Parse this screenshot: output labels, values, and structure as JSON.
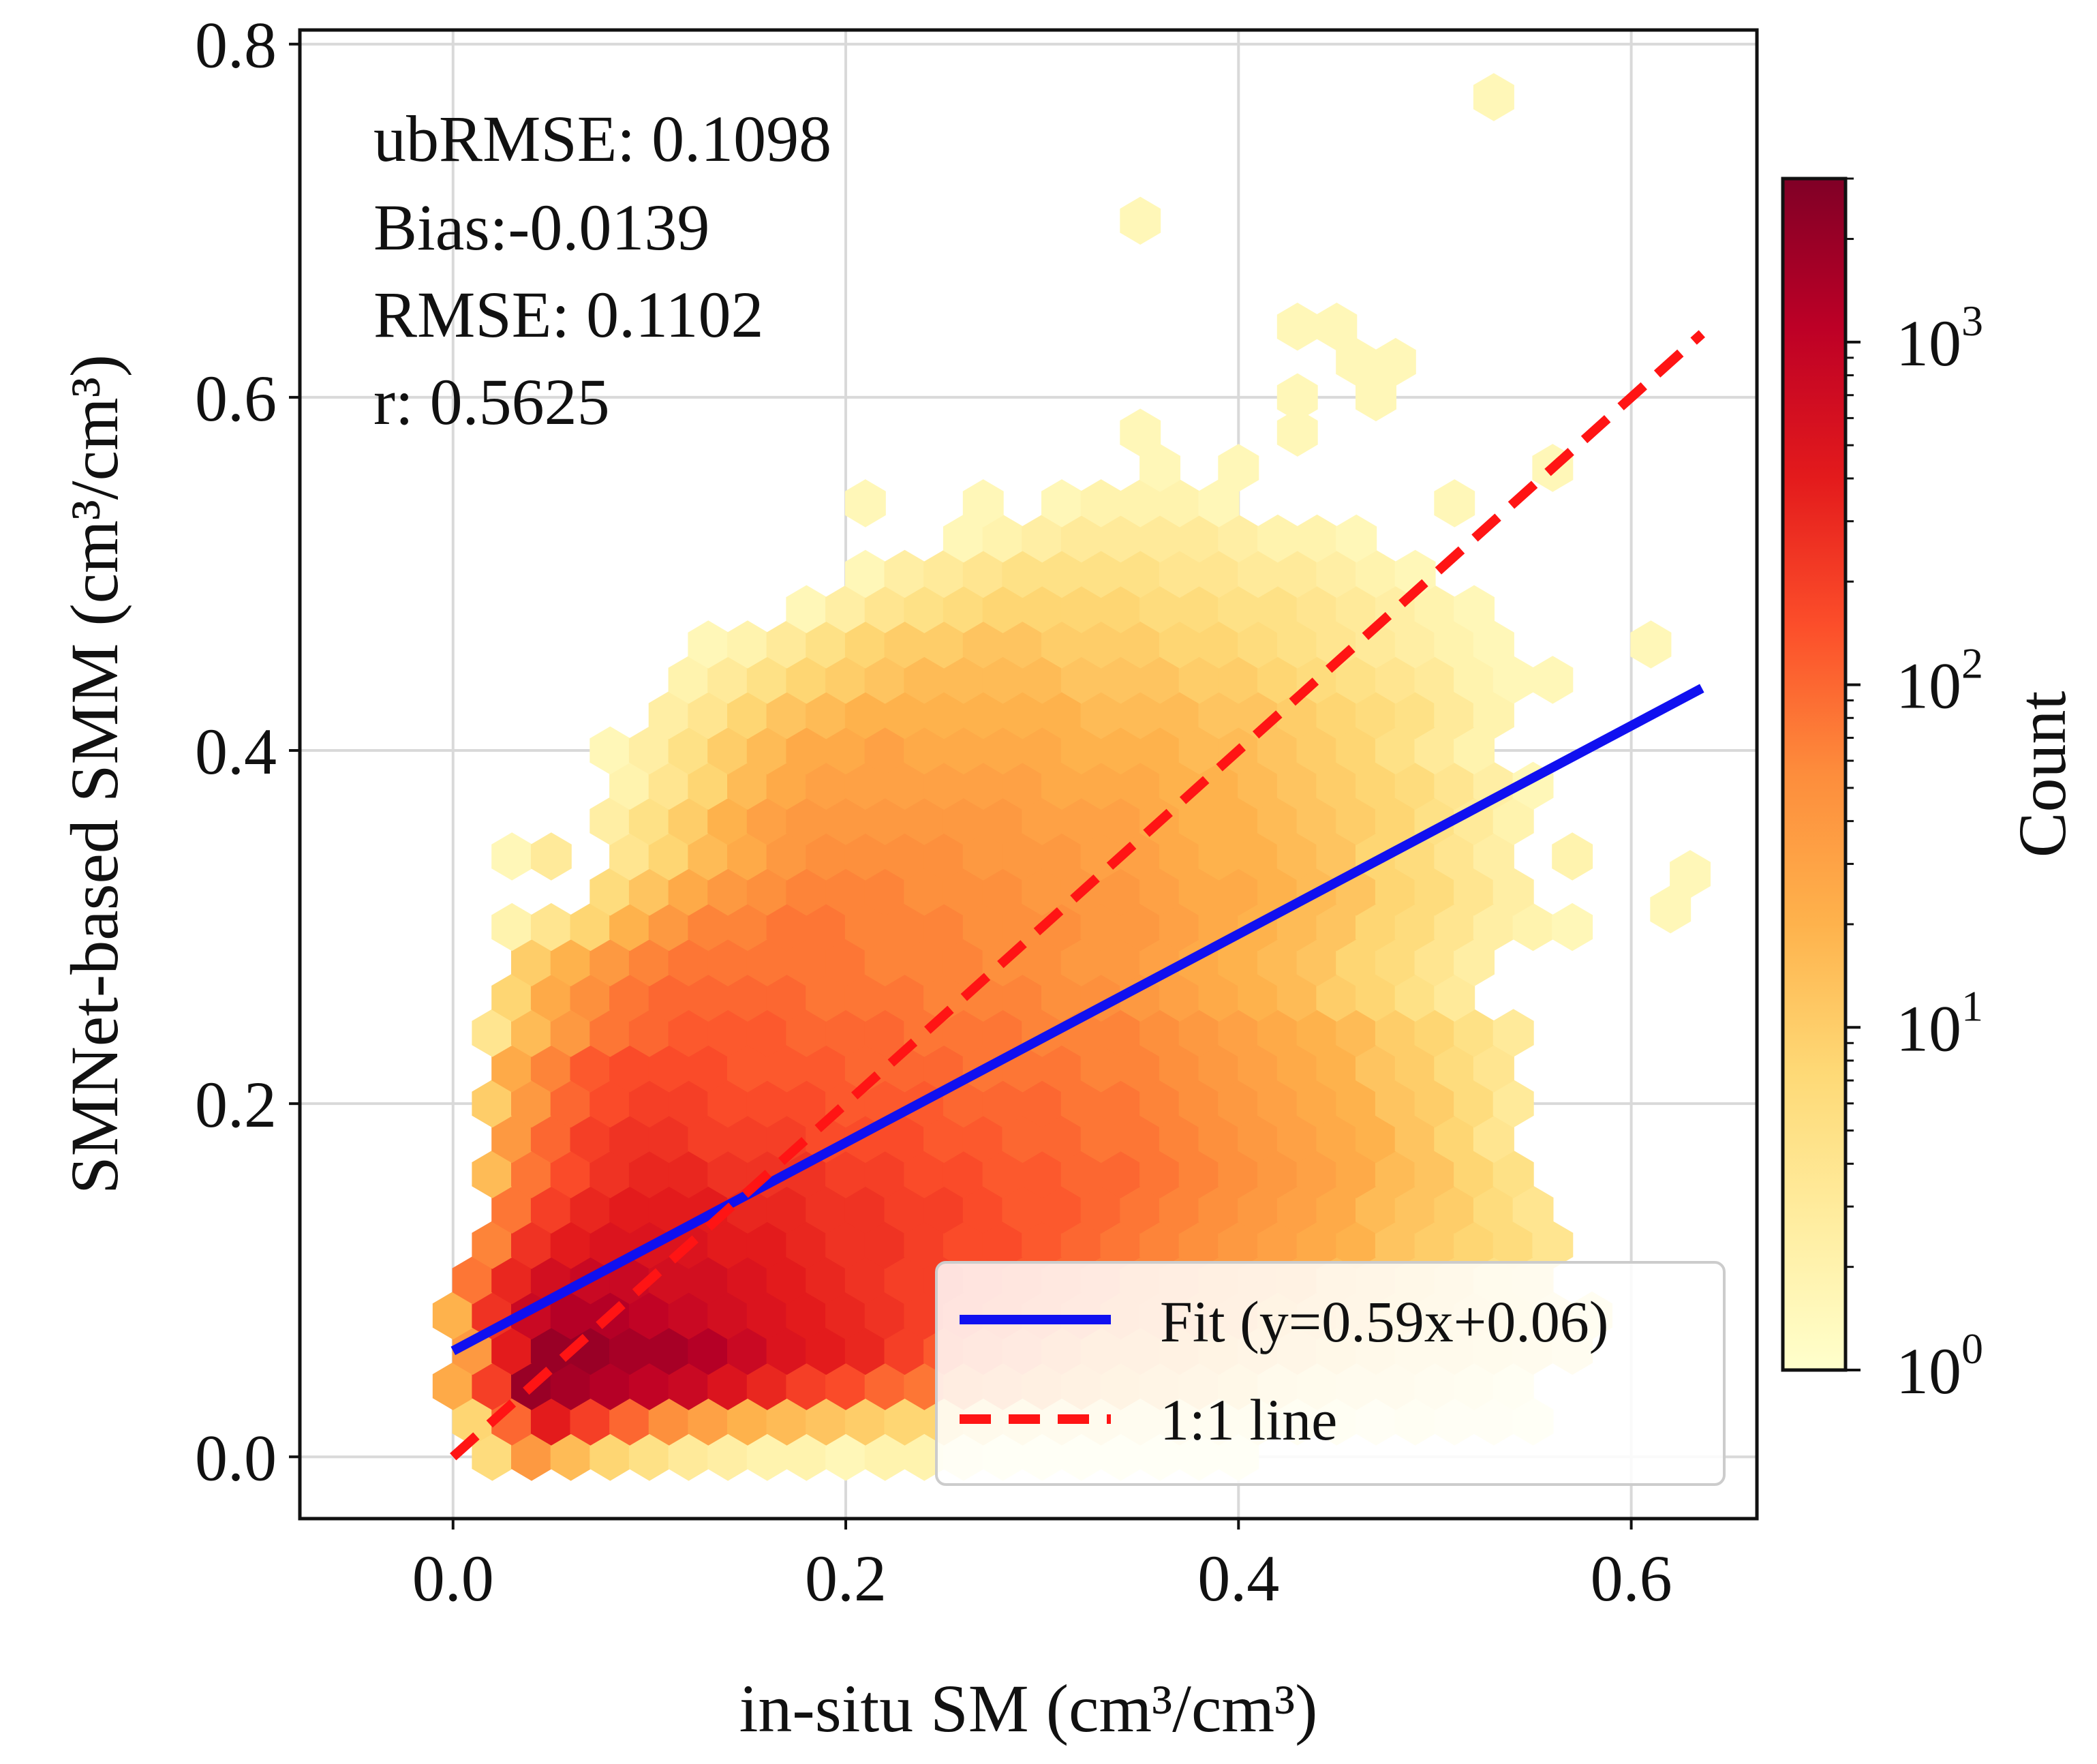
{
  "chart_data": {
    "type": "hexbin",
    "xlabel": "in-situ SM (cm³/cm³)",
    "ylabel": "SMNet-based SMM (cm³/cm³)",
    "xlim": [
      -0.078,
      0.664
    ],
    "ylim": [
      -0.035,
      0.808
    ],
    "x_ticks": [
      0.0,
      0.2,
      0.4,
      0.6
    ],
    "x_tick_labels": [
      "0.0",
      "0.2",
      "0.4",
      "0.6"
    ],
    "y_ticks": [
      0.0,
      0.2,
      0.4,
      0.6,
      0.8
    ],
    "y_tick_labels": [
      "0.0",
      "0.2",
      "0.4",
      "0.6",
      "0.8"
    ],
    "grid": true,
    "stats": [
      "ubRMSE: 0.1098",
      "Bias:-0.0139",
      "RMSE: 0.1102",
      "r: 0.5625"
    ],
    "fit": {
      "slope": 0.59,
      "intercept": 0.06,
      "x_range": [
        0.0,
        0.636
      ],
      "color": "#1010f0"
    },
    "one_to_one": {
      "x_range": [
        0.0,
        0.636
      ],
      "color": "#ff1414"
    },
    "legend": {
      "position": "lower-right",
      "entries": [
        {
          "label": "Fit (y=0.59x+0.06)",
          "style": "solid",
          "color": "#1010f0"
        },
        {
          "label": "1:1 line",
          "style": "dashed",
          "color": "#ff1414"
        }
      ]
    },
    "colorbar": {
      "label": "Count",
      "scale": "log",
      "range": [
        1,
        3000
      ],
      "tick_values": [
        1,
        10,
        100,
        1000
      ],
      "tick_labels": [
        {
          "base": "10",
          "exp": "0"
        },
        {
          "base": "10",
          "exp": "1"
        },
        {
          "base": "10",
          "exp": "2"
        },
        {
          "base": "10",
          "exp": "3"
        }
      ],
      "colormap": "YlOrRd",
      "stops": [
        "#ffffcc",
        "#ffeda0",
        "#fed976",
        "#feb24c",
        "#fd8d3c",
        "#fc4e2a",
        "#e31a1c",
        "#bd0026",
        "#800026"
      ]
    },
    "hexbin": {
      "x_step": 0.02,
      "y_step": 0.04,
      "note": "Approximate log10(count) per hexagon; each row: x-offset (0 = centers at 0.00,0.02,... ; 1 = centers at 0.01,0.03,...), first x center, log10 counts left to right",
      "rows": [
        {
          "y": 0.0,
          "offset": 0,
          "x0": 0.02,
          "v": [
            0.8,
            1.6,
            1.2,
            0.9,
            0.7,
            0.5,
            0.4,
            0.3,
            0.3,
            0.2,
            0.3,
            0.3,
            0.2,
            0.1,
            0.1,
            0.1,
            0.1,
            0.1,
            0.1,
            0.1
          ]
        },
        {
          "y": 0.02,
          "offset": 1,
          "x0": 0.01,
          "v": [
            0.9,
            2.0,
            2.6,
            2.3,
            2.0,
            1.7,
            1.5,
            1.3,
            1.2,
            1.1,
            1.0,
            0.9,
            0.9,
            0.8,
            0.7,
            0.6,
            0.6,
            0.5,
            0.5,
            0.4,
            0.4,
            0.3,
            0.3,
            0.2,
            0.3,
            0.2,
            0.2,
            0.1
          ]
        },
        {
          "y": 0.04,
          "offset": 0,
          "x0": 0.0,
          "v": [
            1.4,
            2.3,
            3.3,
            3.2,
            3.1,
            3.0,
            2.9,
            2.7,
            2.5,
            2.3,
            2.2,
            2.0,
            1.9,
            1.8,
            1.7,
            1.6,
            1.4,
            1.3,
            1.2,
            1.1,
            1.0,
            0.8,
            0.7,
            0.6,
            0.6,
            0.5,
            0.4,
            0.3
          ]
        },
        {
          "y": 0.06,
          "offset": 1,
          "x0": 0.01,
          "v": [
            1.6,
            2.6,
            3.3,
            3.3,
            3.2,
            3.2,
            3.1,
            2.9,
            2.7,
            2.6,
            2.5,
            2.3,
            2.1,
            2.0,
            1.9,
            1.8,
            1.6,
            1.5,
            1.4,
            1.3,
            1.2,
            1.1,
            1.0,
            0.9,
            0.8,
            0.8,
            0.7,
            0.6,
            0.5
          ]
        },
        {
          "y": 0.08,
          "offset": 0,
          "x0": 0.0,
          "v": [
            1.3,
            2.4,
            2.9,
            3.1,
            3.1,
            3.0,
            2.9,
            2.8,
            2.7,
            2.6,
            2.5,
            2.4,
            2.3,
            2.2,
            2.1,
            2.0,
            1.9,
            1.8,
            1.7,
            1.6,
            1.5,
            1.3,
            1.2,
            1.1,
            1.0,
            0.9,
            0.8,
            0.7,
            0.5,
            0.4
          ]
        },
        {
          "y": 0.1,
          "offset": 1,
          "x0": 0.01,
          "v": [
            1.9,
            2.5,
            2.8,
            2.9,
            2.9,
            2.8,
            2.8,
            2.7,
            2.6,
            2.5,
            2.4,
            2.3,
            2.3,
            2.2,
            2.1,
            2.0,
            1.9,
            1.8,
            1.7,
            1.6,
            1.5,
            1.4,
            1.2,
            1.1,
            1.0,
            0.9,
            0.7,
            0.6
          ]
        },
        {
          "y": 0.12,
          "offset": 0,
          "x0": 0.02,
          "v": [
            1.8,
            2.4,
            2.6,
            2.7,
            2.7,
            2.7,
            2.6,
            2.6,
            2.5,
            2.4,
            2.4,
            2.3,
            2.2,
            2.2,
            2.1,
            2.0,
            1.9,
            1.8,
            1.7,
            1.6,
            1.5,
            1.4,
            1.3,
            1.1,
            1.0,
            0.9,
            0.8,
            0.6
          ]
        },
        {
          "y": 0.14,
          "offset": 1,
          "x0": 0.03,
          "v": [
            1.9,
            2.3,
            2.5,
            2.6,
            2.6,
            2.6,
            2.5,
            2.5,
            2.4,
            2.4,
            2.3,
            2.3,
            2.2,
            2.1,
            2.1,
            2.0,
            1.9,
            1.8,
            1.7,
            1.6,
            1.5,
            1.4,
            1.2,
            1.1,
            1.0,
            0.8,
            0.6
          ]
        },
        {
          "y": 0.16,
          "offset": 0,
          "x0": 0.02,
          "v": [
            1.2,
            1.9,
            2.2,
            2.4,
            2.5,
            2.5,
            2.4,
            2.4,
            2.4,
            2.3,
            2.3,
            2.2,
            2.2,
            2.1,
            2.1,
            2.0,
            2.0,
            1.9,
            1.8,
            1.7,
            1.6,
            1.5,
            1.4,
            1.2,
            1.1,
            0.9,
            0.7
          ]
        },
        {
          "y": 0.18,
          "offset": 1,
          "x0": 0.03,
          "v": [
            1.6,
            2.0,
            2.3,
            2.4,
            2.4,
            2.3,
            2.3,
            2.3,
            2.2,
            2.2,
            2.2,
            2.1,
            2.1,
            2.0,
            2.0,
            1.9,
            1.9,
            1.8,
            1.7,
            1.6,
            1.5,
            1.4,
            1.3,
            1.1,
            0.9,
            0.6
          ]
        },
        {
          "y": 0.2,
          "offset": 0,
          "x0": 0.02,
          "v": [
            1.0,
            1.6,
            2.0,
            2.2,
            2.3,
            2.3,
            2.2,
            2.2,
            2.2,
            2.1,
            2.1,
            2.1,
            2.0,
            2.0,
            2.0,
            1.9,
            1.9,
            1.8,
            1.7,
            1.6,
            1.5,
            1.4,
            1.3,
            1.1,
            1.0,
            0.8,
            0.5
          ]
        },
        {
          "y": 0.22,
          "offset": 1,
          "x0": 0.03,
          "v": [
            1.4,
            1.8,
            2.1,
            2.2,
            2.2,
            2.2,
            2.1,
            2.1,
            2.1,
            2.0,
            2.0,
            2.0,
            1.9,
            1.9,
            1.9,
            1.8,
            1.8,
            1.7,
            1.6,
            1.5,
            1.4,
            1.3,
            1.1,
            1.0,
            0.8,
            0.6
          ]
        },
        {
          "y": 0.24,
          "offset": 0,
          "x0": 0.02,
          "v": [
            0.6,
            1.2,
            1.6,
            1.9,
            2.0,
            2.1,
            2.1,
            2.1,
            2.0,
            2.0,
            2.0,
            1.9,
            1.9,
            1.9,
            1.8,
            1.8,
            1.8,
            1.7,
            1.6,
            1.5,
            1.4,
            1.3,
            1.2,
            1.0,
            0.9,
            0.7,
            0.5
          ]
        },
        {
          "y": 0.26,
          "offset": 1,
          "x0": 0.03,
          "v": [
            0.9,
            1.4,
            1.7,
            1.9,
            2.0,
            2.0,
            2.0,
            2.0,
            1.9,
            1.9,
            1.9,
            1.8,
            1.8,
            1.8,
            1.7,
            1.7,
            1.6,
            1.5,
            1.4,
            1.3,
            1.2,
            1.0,
            0.9,
            0.7,
            0.5
          ]
        },
        {
          "y": 0.28,
          "offset": 0,
          "x0": 0.04,
          "v": [
            1.0,
            1.3,
            1.6,
            1.8,
            1.9,
            1.9,
            1.9,
            1.9,
            1.9,
            1.8,
            1.8,
            1.8,
            1.7,
            1.7,
            1.6,
            1.6,
            1.5,
            1.4,
            1.3,
            1.2,
            1.1,
            0.9,
            0.8,
            0.6,
            0.4
          ]
        },
        {
          "y": 0.3,
          "offset": 1,
          "x0": 0.03,
          "v": [
            0.3,
            0.6,
            0.9,
            1.3,
            1.6,
            1.8,
            1.8,
            1.9,
            1.9,
            1.8,
            1.8,
            1.8,
            1.7,
            1.7,
            1.7,
            1.6,
            1.6,
            1.5,
            1.4,
            1.3,
            1.2,
            1.1,
            0.9,
            0.8,
            0.6,
            0.4,
            0.3,
            0.2
          ]
        },
        {
          "y": 0.32,
          "offset": 0,
          "x0": 0.08,
          "v": [
            0.8,
            1.1,
            1.4,
            1.6,
            1.7,
            1.8,
            1.8,
            1.8,
            1.7,
            1.7,
            1.7,
            1.6,
            1.6,
            1.6,
            1.5,
            1.4,
            1.4,
            1.3,
            1.2,
            1.1,
            0.9,
            0.8,
            0.6,
            0.4
          ]
        },
        {
          "y": 0.34,
          "offset": 1,
          "x0": 0.03,
          "v": [
            0.2,
            0.5,
            0.0,
            0.6,
            0.9,
            1.2,
            1.4,
            1.6,
            1.7,
            1.7,
            1.7,
            1.7,
            1.6,
            1.6,
            1.6,
            1.5,
            1.5,
            1.4,
            1.3,
            1.3,
            1.2,
            1.1,
            0.9,
            0.8,
            0.6,
            0.4,
            0.0,
            0.3
          ]
        },
        {
          "y": 0.36,
          "offset": 0,
          "x0": 0.08,
          "v": [
            0.4,
            0.7,
            1.0,
            1.3,
            1.5,
            1.6,
            1.6,
            1.6,
            1.6,
            1.6,
            1.6,
            1.5,
            1.5,
            1.5,
            1.4,
            1.3,
            1.3,
            1.2,
            1.1,
            1.0,
            0.9,
            0.7,
            0.5,
            0.3
          ]
        },
        {
          "y": 0.38,
          "offset": 1,
          "x0": 0.09,
          "v": [
            0.3,
            0.6,
            0.9,
            1.2,
            1.4,
            1.5,
            1.5,
            1.5,
            1.5,
            1.5,
            1.5,
            1.4,
            1.4,
            1.4,
            1.3,
            1.3,
            1.2,
            1.1,
            1.0,
            0.9,
            0.8,
            0.6,
            0.4,
            0.2
          ]
        },
        {
          "y": 0.4,
          "offset": 0,
          "x0": 0.08,
          "v": [
            0.2,
            0.4,
            0.7,
            1.0,
            1.2,
            1.4,
            1.4,
            1.5,
            1.4,
            1.4,
            1.4,
            1.4,
            1.3,
            1.3,
            1.3,
            1.2,
            1.2,
            1.1,
            1.0,
            0.9,
            0.7,
            0.5,
            0.3
          ]
        },
        {
          "y": 0.42,
          "offset": 1,
          "x0": 0.11,
          "v": [
            0.4,
            0.6,
            0.9,
            1.1,
            1.2,
            1.3,
            1.3,
            1.3,
            1.3,
            1.3,
            1.3,
            1.2,
            1.2,
            1.2,
            1.1,
            1.1,
            1.0,
            0.9,
            0.8,
            0.7,
            0.5,
            0.3
          ]
        },
        {
          "y": 0.44,
          "offset": 0,
          "x0": 0.12,
          "v": [
            0.3,
            0.5,
            0.7,
            0.9,
            1.0,
            1.1,
            1.2,
            1.2,
            1.2,
            1.2,
            1.1,
            1.1,
            1.1,
            1.0,
            1.0,
            0.9,
            0.8,
            0.7,
            0.6,
            0.5,
            0.3,
            0.2,
            0.2
          ]
        },
        {
          "y": 0.46,
          "offset": 1,
          "x0": 0.13,
          "v": [
            0.2,
            0.3,
            0.5,
            0.7,
            0.9,
            1.0,
            1.0,
            1.1,
            1.1,
            1.0,
            1.0,
            1.0,
            0.9,
            0.9,
            0.8,
            0.7,
            0.6,
            0.5,
            0.4,
            0.3,
            0.2
          ]
        },
        {
          "y": 0.48,
          "offset": 0,
          "x0": 0.18,
          "v": [
            0.2,
            0.4,
            0.6,
            0.7,
            0.8,
            0.9,
            0.9,
            0.9,
            0.9,
            0.8,
            0.8,
            0.7,
            0.7,
            0.6,
            0.5,
            0.4,
            0.3,
            0.2
          ]
        },
        {
          "y": 0.5,
          "offset": 1,
          "x0": 0.21,
          "v": [
            0.2,
            0.4,
            0.5,
            0.6,
            0.7,
            0.7,
            0.7,
            0.7,
            0.6,
            0.6,
            0.5,
            0.5,
            0.4,
            0.3,
            0.2
          ]
        },
        {
          "y": 0.52,
          "offset": 0,
          "x0": 0.26,
          "v": [
            0.2,
            0.3,
            0.4,
            0.5,
            0.5,
            0.5,
            0.5,
            0.4,
            0.3,
            0.3,
            0.2
          ]
        },
        {
          "y": 0.54,
          "offset": 1,
          "x0": 0.21,
          "v": [
            0.2,
            0.0,
            0.0,
            0.2,
            0.0,
            0.2,
            0.3,
            0.3,
            0.3,
            0.2,
            0.0,
            0.0,
            0.0,
            0.0,
            0.0,
            0.2
          ]
        },
        {
          "y": 0.56,
          "offset": 0,
          "x0": 0.36,
          "v": [
            0.2,
            0.0,
            0.2,
            0.0,
            0.0,
            0.0,
            0.0,
            0.0,
            0.0,
            0.0,
            0.2
          ]
        },
        {
          "y": 0.58,
          "offset": 1,
          "x0": 0.35,
          "v": [
            0.2,
            0.0,
            0.0,
            0.0,
            0.2
          ]
        }
      ],
      "extra": [
        {
          "x": 0.53,
          "y": 0.77,
          "v": 0.2
        },
        {
          "x": 0.35,
          "y": 0.7,
          "v": 0.2
        },
        {
          "x": 0.43,
          "y": 0.64,
          "v": 0.2
        },
        {
          "x": 0.45,
          "y": 0.64,
          "v": 0.2
        },
        {
          "x": 0.46,
          "y": 0.62,
          "v": 0.2
        },
        {
          "x": 0.48,
          "y": 0.62,
          "v": 0.2
        },
        {
          "x": 0.47,
          "y": 0.6,
          "v": 0.2
        },
        {
          "x": 0.43,
          "y": 0.6,
          "v": 0.2
        },
        {
          "x": 0.63,
          "y": 0.33,
          "v": 0.2
        },
        {
          "x": 0.62,
          "y": 0.31,
          "v": 0.2
        },
        {
          "x": 0.61,
          "y": 0.46,
          "v": 0.2
        }
      ]
    }
  }
}
